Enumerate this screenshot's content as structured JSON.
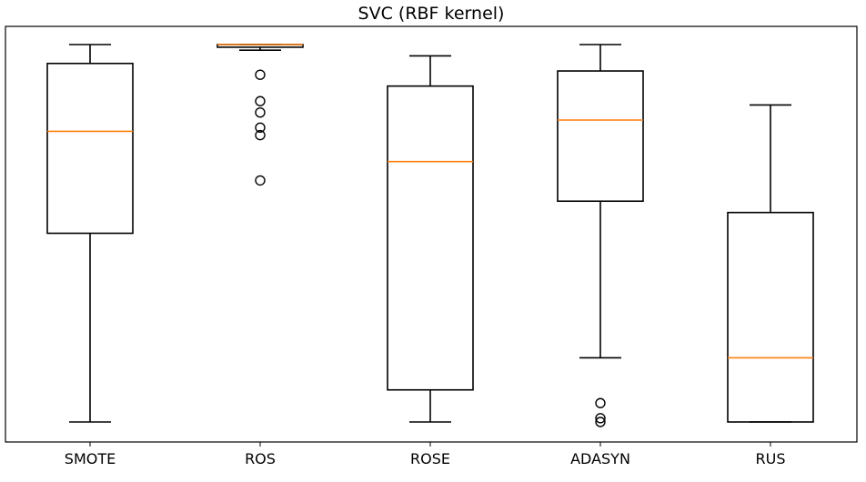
{
  "chart_data": {
    "type": "boxplot",
    "title": "SVC (RBF kernel)",
    "xlabel": "",
    "ylabel": "",
    "ylim": [
      0,
      1
    ],
    "y_ticks_shown": false,
    "grid": false,
    "colors": {
      "box": "#000000",
      "median": "#ff7f0e",
      "frame": "#000000"
    },
    "categories": [
      "SMOTE",
      "ROS",
      "ROSE",
      "ADASYN",
      "RUS"
    ],
    "series": [
      {
        "category": "SMOTE",
        "whisker_low": 0.0,
        "q1": 0.5,
        "median": 0.77,
        "q3": 0.95,
        "whisker_high": 1.0,
        "outliers": []
      },
      {
        "category": "ROS",
        "whisker_low": 0.985,
        "q1": 0.993,
        "median": 1.0,
        "q3": 1.0,
        "whisker_high": 1.0,
        "outliers": [
          0.92,
          0.85,
          0.82,
          0.78,
          0.76,
          0.64
        ]
      },
      {
        "category": "ROSE",
        "whisker_low": 0.0,
        "q1": 0.085,
        "median": 0.69,
        "q3": 0.89,
        "whisker_high": 0.97,
        "outliers": []
      },
      {
        "category": "ADASYN",
        "whisker_low": 0.17,
        "q1": 0.585,
        "median": 0.8,
        "q3": 0.93,
        "whisker_high": 1.0,
        "outliers": [
          0.05,
          0.01,
          0.0
        ]
      },
      {
        "category": "RUS",
        "whisker_low": 0.0,
        "q1": 0.0,
        "median": 0.17,
        "q3": 0.555,
        "whisker_high": 0.84,
        "outliers": []
      }
    ]
  }
}
